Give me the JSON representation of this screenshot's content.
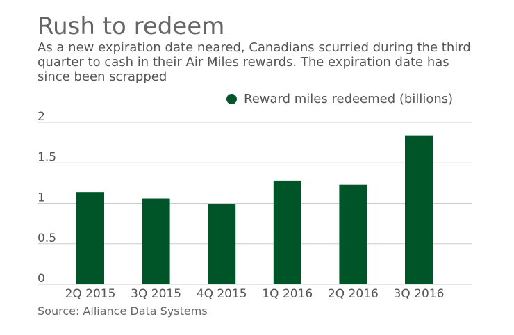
{
  "header": {
    "title": "Rush to redeem",
    "subtitle": "As a new expiration date neared, Canadians scurried during the third quarter to cash in their Air Miles rewards. The expiration date has since been scrapped"
  },
  "source": "Source: Alliance Data Systems",
  "colors": {
    "bar": "#005528",
    "grid": "#cccccc",
    "axis_text": "#555555"
  },
  "chart_data": {
    "type": "bar",
    "title": "Rush to redeem",
    "categories": [
      "2Q 2015",
      "3Q 2015",
      "4Q 2015",
      "1Q 2016",
      "2Q 2016",
      "3Q 2016"
    ],
    "series": [
      {
        "name": "Reward miles redeemed (billions)",
        "values": [
          1.14,
          1.06,
          0.99,
          1.28,
          1.23,
          1.84
        ]
      }
    ],
    "ylim": [
      0,
      2
    ],
    "yticks": [
      0,
      0.5,
      1,
      1.5,
      2
    ],
    "ytick_labels": [
      "0",
      "0.5",
      "1",
      "1.5",
      "2"
    ],
    "xlabel": "",
    "ylabel": "",
    "grid": true,
    "legend_position": "top-right"
  }
}
